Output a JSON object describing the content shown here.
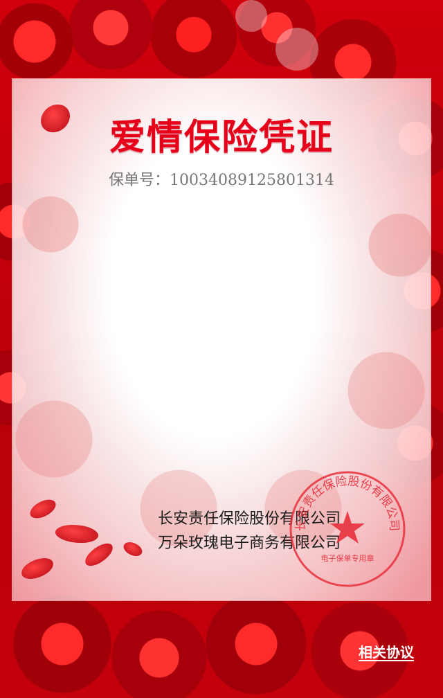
{
  "certificate": {
    "title": "爱情保险凭证",
    "policy_number_line": "保单号：10034089125801314"
  },
  "issuers": {
    "line1": "长安责任保险股份有限公司",
    "line2": "万朵玫瑰电子商务有限公司"
  },
  "seal": {
    "arc_text": "长安责任保险股份有限公司",
    "bottom_text": "电子保单专用章",
    "color": "#e8303c"
  },
  "footer": {
    "agreement_link": "相关协议"
  },
  "colors": {
    "title": "#e6001a",
    "background_red": "#c8000a"
  }
}
